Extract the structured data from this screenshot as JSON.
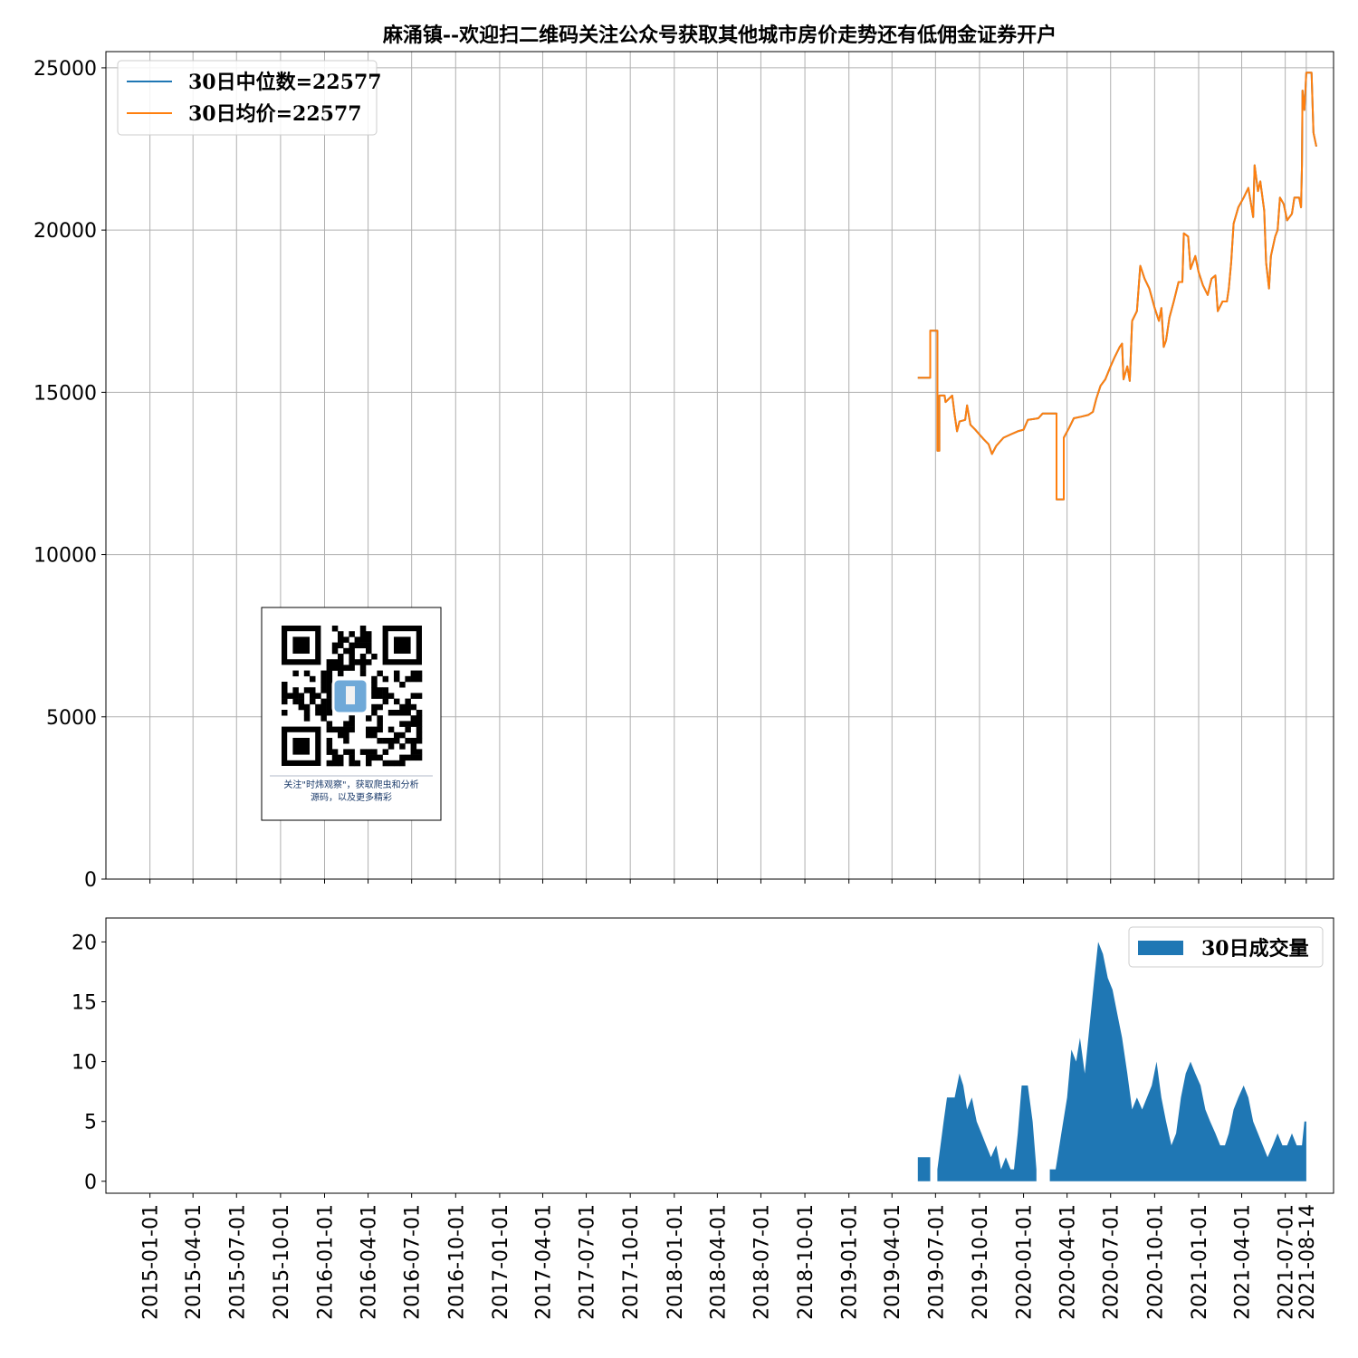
{
  "chart_data": [
    {
      "type": "line",
      "title": "麻涌镇--欢迎扫二维码关注公众号获取其他城市房价走势还有低佣金证券开户",
      "y_ticks": [
        "0",
        "5000",
        "10000",
        "15000",
        "20000",
        "25000"
      ],
      "ylim": [
        0,
        25500
      ],
      "x_range": [
        "2014-10-01",
        "2021-10-10"
      ],
      "grid": true,
      "legend_position": "upper-left",
      "series": [
        {
          "name": "30日中位数=22577",
          "color": "#1f77b4",
          "points": [
            [
              "2019-05-25",
              15450
            ],
            [
              "2019-06-20",
              15450
            ],
            [
              "2019-06-20",
              16900
            ],
            [
              "2019-07-05",
              16900
            ],
            [
              "2019-07-05",
              13200
            ],
            [
              "2019-07-09",
              13200
            ],
            [
              "2019-07-09",
              14900
            ],
            [
              "2019-07-20",
              14900
            ],
            [
              "2019-07-22",
              14700
            ],
            [
              "2019-08-05",
              14900
            ],
            [
              "2019-08-10",
              14300
            ],
            [
              "2019-08-15",
              13800
            ],
            [
              "2019-08-20",
              14100
            ],
            [
              "2019-09-01",
              14150
            ],
            [
              "2019-09-05",
              14600
            ],
            [
              "2019-09-12",
              14000
            ],
            [
              "2019-09-22",
              13850
            ],
            [
              "2019-10-01",
              13700
            ],
            [
              "2019-10-10",
              13550
            ],
            [
              "2019-10-20",
              13400
            ],
            [
              "2019-10-27",
              13100
            ],
            [
              "2019-11-05",
              13350
            ],
            [
              "2019-11-20",
              13600
            ],
            [
              "2019-12-05",
              13700
            ],
            [
              "2019-12-20",
              13800
            ],
            [
              "2020-01-01",
              13850
            ],
            [
              "2020-01-10",
              14150
            ],
            [
              "2020-02-01",
              14200
            ],
            [
              "2020-02-10",
              14350
            ],
            [
              "2020-03-10",
              14350
            ],
            [
              "2020-03-10",
              11700
            ],
            [
              "2020-03-25",
              11700
            ],
            [
              "2020-03-25",
              13600
            ],
            [
              "2020-04-05",
              13900
            ],
            [
              "2020-04-15",
              14200
            ],
            [
              "2020-05-01",
              14250
            ],
            [
              "2020-05-15",
              14300
            ],
            [
              "2020-05-25",
              14400
            ],
            [
              "2020-06-01",
              14800
            ],
            [
              "2020-06-10",
              15200
            ],
            [
              "2020-06-20",
              15400
            ],
            [
              "2020-07-01",
              15800
            ],
            [
              "2020-07-10",
              16100
            ],
            [
              "2020-07-20",
              16400
            ],
            [
              "2020-07-25",
              16500
            ],
            [
              "2020-07-28",
              15400
            ],
            [
              "2020-08-05",
              15800
            ],
            [
              "2020-08-10",
              15350
            ],
            [
              "2020-08-15",
              17200
            ],
            [
              "2020-08-25",
              17500
            ],
            [
              "2020-09-01",
              18900
            ],
            [
              "2020-09-10",
              18500
            ],
            [
              "2020-09-20",
              18200
            ],
            [
              "2020-10-01",
              17600
            ],
            [
              "2020-10-10",
              17200
            ],
            [
              "2020-10-15",
              17600
            ],
            [
              "2020-10-20",
              16400
            ],
            [
              "2020-10-25",
              16600
            ],
            [
              "2020-11-01",
              17300
            ],
            [
              "2020-11-10",
              17800
            ],
            [
              "2020-11-20",
              18400
            ],
            [
              "2020-11-28",
              18400
            ],
            [
              "2020-12-01",
              19900
            ],
            [
              "2020-12-10",
              19800
            ],
            [
              "2020-12-15",
              18800
            ],
            [
              "2020-12-25",
              19200
            ],
            [
              "2021-01-01",
              18700
            ],
            [
              "2021-01-10",
              18300
            ],
            [
              "2021-01-20",
              18000
            ],
            [
              "2021-01-28",
              18500
            ],
            [
              "2021-02-05",
              18600
            ],
            [
              "2021-02-10",
              17500
            ],
            [
              "2021-02-20",
              17800
            ],
            [
              "2021-03-01",
              17800
            ],
            [
              "2021-03-05",
              18200
            ],
            [
              "2021-03-10",
              19000
            ],
            [
              "2021-03-15",
              20200
            ],
            [
              "2021-03-25",
              20700
            ],
            [
              "2021-04-05",
              21000
            ],
            [
              "2021-04-15",
              21300
            ],
            [
              "2021-04-25",
              20400
            ],
            [
              "2021-04-28",
              22000
            ],
            [
              "2021-05-05",
              21200
            ],
            [
              "2021-05-10",
              21500
            ],
            [
              "2021-05-18",
              20600
            ],
            [
              "2021-05-22",
              19000
            ],
            [
              "2021-05-28",
              18200
            ],
            [
              "2021-06-01",
              19200
            ],
            [
              "2021-06-10",
              19800
            ],
            [
              "2021-06-15",
              20000
            ],
            [
              "2021-06-20",
              21000
            ],
            [
              "2021-06-28",
              20800
            ],
            [
              "2021-07-05",
              20300
            ],
            [
              "2021-07-15",
              20500
            ],
            [
              "2021-07-20",
              21000
            ],
            [
              "2021-07-30",
              21000
            ],
            [
              "2021-08-03",
              20700
            ],
            [
              "2021-08-05",
              22000
            ],
            [
              "2021-08-06",
              24300
            ],
            [
              "2021-08-10",
              23700
            ],
            [
              "2021-08-14",
              24850
            ],
            [
              "2021-08-25",
              24850
            ],
            [
              "2021-08-29",
              23000
            ],
            [
              "2021-09-04",
              22577
            ]
          ]
        },
        {
          "name": "30日均价=22577",
          "color": "#ff7f0e",
          "same_as_series": 0
        }
      ]
    },
    {
      "type": "area",
      "y_ticks": [
        "0",
        "5",
        "10",
        "15",
        "20"
      ],
      "ylim": [
        -1,
        22
      ],
      "legend_position": "upper-right",
      "x_ticks": [
        "2015-01-01",
        "2015-04-01",
        "2015-07-01",
        "2015-10-01",
        "2016-01-01",
        "2016-04-01",
        "2016-07-01",
        "2016-10-01",
        "2017-01-01",
        "2017-04-01",
        "2017-07-01",
        "2017-10-01",
        "2018-01-01",
        "2018-04-01",
        "2018-07-01",
        "2018-10-01",
        "2019-01-01",
        "2019-04-01",
        "2019-07-01",
        "2019-10-01",
        "2020-01-01",
        "2020-04-01",
        "2020-07-01",
        "2020-10-01",
        "2021-01-01",
        "2021-04-01",
        "2021-07-01",
        "2021-08-14"
      ],
      "series": [
        {
          "name": "30日成交量",
          "color": "#1f77b4",
          "points": [
            [
              "2019-05-25",
              0
            ],
            [
              "2019-05-25",
              2
            ],
            [
              "2019-06-20",
              2
            ],
            [
              "2019-06-20",
              0
            ],
            [
              "2019-07-05",
              0
            ],
            [
              "2019-07-05",
              1
            ],
            [
              "2019-07-18",
              5
            ],
            [
              "2019-07-25",
              7
            ],
            [
              "2019-08-10",
              7
            ],
            [
              "2019-08-20",
              9
            ],
            [
              "2019-08-28",
              8
            ],
            [
              "2019-09-05",
              6
            ],
            [
              "2019-09-15",
              7
            ],
            [
              "2019-09-25",
              5
            ],
            [
              "2019-10-05",
              4
            ],
            [
              "2019-10-15",
              3
            ],
            [
              "2019-10-25",
              2
            ],
            [
              "2019-11-05",
              3
            ],
            [
              "2019-11-15",
              1
            ],
            [
              "2019-11-25",
              2
            ],
            [
              "2019-12-05",
              1
            ],
            [
              "2019-12-12",
              1
            ],
            [
              "2019-12-20",
              4
            ],
            [
              "2019-12-28",
              8
            ],
            [
              "2020-01-10",
              8
            ],
            [
              "2020-01-20",
              5
            ],
            [
              "2020-01-28",
              1
            ],
            [
              "2020-01-28",
              0
            ],
            [
              "2020-02-25",
              0
            ],
            [
              "2020-02-25",
              1
            ],
            [
              "2020-03-08",
              1
            ],
            [
              "2020-03-20",
              4
            ],
            [
              "2020-04-01",
              7
            ],
            [
              "2020-04-10",
              11
            ],
            [
              "2020-04-20",
              10
            ],
            [
              "2020-04-28",
              12
            ],
            [
              "2020-05-08",
              9
            ],
            [
              "2020-05-18",
              13
            ],
            [
              "2020-05-28",
              17
            ],
            [
              "2020-06-05",
              20
            ],
            [
              "2020-06-15",
              19
            ],
            [
              "2020-06-25",
              17
            ],
            [
              "2020-07-05",
              16
            ],
            [
              "2020-07-15",
              14
            ],
            [
              "2020-07-25",
              12
            ],
            [
              "2020-08-05",
              9
            ],
            [
              "2020-08-15",
              6
            ],
            [
              "2020-08-25",
              7
            ],
            [
              "2020-09-05",
              6
            ],
            [
              "2020-09-15",
              7
            ],
            [
              "2020-09-25",
              8
            ],
            [
              "2020-10-05",
              10
            ],
            [
              "2020-10-15",
              7
            ],
            [
              "2020-10-25",
              5
            ],
            [
              "2020-11-05",
              3
            ],
            [
              "2020-11-15",
              4
            ],
            [
              "2020-11-25",
              7
            ],
            [
              "2020-12-05",
              9
            ],
            [
              "2020-12-15",
              10
            ],
            [
              "2020-12-25",
              9
            ],
            [
              "2021-01-05",
              8
            ],
            [
              "2021-01-15",
              6
            ],
            [
              "2021-01-25",
              5
            ],
            [
              "2021-02-05",
              4
            ],
            [
              "2021-02-15",
              3
            ],
            [
              "2021-02-25",
              3
            ],
            [
              "2021-03-05",
              4
            ],
            [
              "2021-03-15",
              6
            ],
            [
              "2021-03-25",
              7
            ],
            [
              "2021-04-05",
              8
            ],
            [
              "2021-04-15",
              7
            ],
            [
              "2021-04-25",
              5
            ],
            [
              "2021-05-05",
              4
            ],
            [
              "2021-05-15",
              3
            ],
            [
              "2021-05-25",
              2
            ],
            [
              "2021-06-05",
              3
            ],
            [
              "2021-06-15",
              4
            ],
            [
              "2021-06-25",
              3
            ],
            [
              "2021-07-05",
              3
            ],
            [
              "2021-07-15",
              4
            ],
            [
              "2021-07-25",
              3
            ],
            [
              "2021-08-05",
              3
            ],
            [
              "2021-08-10",
              5
            ],
            [
              "2021-08-14",
              5
            ],
            [
              "2021-08-14",
              0
            ]
          ]
        }
      ]
    }
  ],
  "qr": {
    "caption_line1": "关注\"时炜观察\"，获取爬虫和分析",
    "caption_line2": "源码，以及更多精彩"
  }
}
